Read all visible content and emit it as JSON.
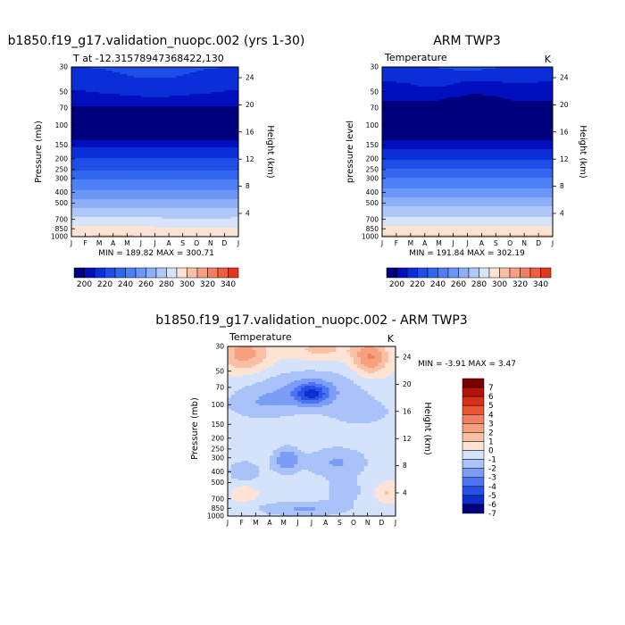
{
  "chart_data": [
    {
      "type": "heatmap",
      "title": "b1850.f19_g17.validation_nuopc.002 (yrs 1-30)",
      "subtitle_left": "T at -12.31578947368422,130",
      "subtitle_right": "",
      "ylabel": "Pressure (mb)",
      "ylabel_right": "Height (km)",
      "xticks": [
        "J",
        "F",
        "M",
        "A",
        "M",
        "J",
        "J",
        "A",
        "S",
        "O",
        "N",
        "D",
        "J"
      ],
      "yticks": [
        "30",
        "50",
        "70",
        "100",
        "150",
        "200",
        "250",
        "300",
        "400",
        "500",
        "700",
        "850",
        "1000"
      ],
      "yticks_right": [
        "24",
        "20",
        "16",
        "12",
        "8",
        "4"
      ],
      "minmax_text": "MIN = 189.82 MAX = 300.71",
      "min": 189.82,
      "max": 300.71,
      "levels": [
        200,
        210,
        220,
        230,
        240,
        250,
        260,
        270,
        280,
        290,
        300,
        310,
        320,
        330,
        340
      ],
      "colorbar_labels": [
        "200",
        "220",
        "240",
        "260",
        "280",
        "300",
        "320",
        "340"
      ],
      "ylim": [
        30,
        1000
      ],
      "profile": [
        {
          "p": 30,
          "t": 222
        },
        {
          "p": 50,
          "t": 212
        },
        {
          "p": 70,
          "t": 198
        },
        {
          "p": 100,
          "t": 193
        },
        {
          "p": 130,
          "t": 198
        },
        {
          "p": 150,
          "t": 208
        },
        {
          "p": 200,
          "t": 220
        },
        {
          "p": 250,
          "t": 229
        },
        {
          "p": 300,
          "t": 238
        },
        {
          "p": 400,
          "t": 253
        },
        {
          "p": 500,
          "t": 265
        },
        {
          "p": 700,
          "t": 282
        },
        {
          "p": 850,
          "t": 292
        },
        {
          "p": 1000,
          "t": 300
        }
      ]
    },
    {
      "type": "heatmap",
      "title": "ARM TWP3",
      "subtitle_left": "Temperature",
      "subtitle_right": "K",
      "ylabel": "pressure level",
      "ylabel_right": "Height (km)",
      "xticks": [
        "J",
        "F",
        "M",
        "A",
        "M",
        "J",
        "J",
        "A",
        "S",
        "O",
        "N",
        "D",
        "J"
      ],
      "yticks": [
        "30",
        "50",
        "70",
        "100",
        "150",
        "200",
        "250",
        "300",
        "400",
        "500",
        "700",
        "850",
        "1000"
      ],
      "yticks_right": [
        "24",
        "20",
        "16",
        "12",
        "8",
        "4"
      ],
      "minmax_text": "MIN = 191.84 MAX = 302.19",
      "min": 191.84,
      "max": 302.19,
      "levels": [
        200,
        210,
        220,
        230,
        240,
        250,
        260,
        270,
        280,
        290,
        300,
        310,
        320,
        330,
        340
      ],
      "colorbar_labels": [
        "200",
        "220",
        "240",
        "260",
        "280",
        "300",
        "320",
        "340"
      ],
      "ylim": [
        30,
        1000
      ],
      "profile": [
        {
          "p": 30,
          "t": 219
        },
        {
          "p": 50,
          "t": 208
        },
        {
          "p": 70,
          "t": 195
        },
        {
          "p": 100,
          "t": 192
        },
        {
          "p": 130,
          "t": 198
        },
        {
          "p": 150,
          "t": 207
        },
        {
          "p": 200,
          "t": 219
        },
        {
          "p": 250,
          "t": 230
        },
        {
          "p": 300,
          "t": 240
        },
        {
          "p": 400,
          "t": 255
        },
        {
          "p": 500,
          "t": 267
        },
        {
          "p": 700,
          "t": 283
        },
        {
          "p": 850,
          "t": 293
        },
        {
          "p": 1000,
          "t": 301
        }
      ]
    },
    {
      "type": "heatmap",
      "title": "b1850.f19_g17.validation_nuopc.002 - ARM TWP3",
      "subtitle_left": "Temperature",
      "subtitle_right": "K",
      "ylabel": "Pressure (mb)",
      "ylabel_right": "Height (km)",
      "xticks": [
        "J",
        "F",
        "M",
        "A",
        "M",
        "J",
        "J",
        "A",
        "S",
        "O",
        "N",
        "D",
        "J"
      ],
      "yticks": [
        "30",
        "50",
        "70",
        "100",
        "150",
        "200",
        "250",
        "300",
        "400",
        "500",
        "700",
        "850",
        "1000"
      ],
      "yticks_right": [
        "24",
        "20",
        "16",
        "12",
        "8",
        "4"
      ],
      "minmax_text": "MIN =  -3.91 MAX =   3.47",
      "min": -3.91,
      "max": 3.47,
      "levels": [
        -7,
        -6,
        -5,
        -4,
        -3,
        -2,
        -1,
        0,
        1,
        2,
        3,
        4,
        5,
        6,
        7
      ],
      "colorbar_labels": [
        "7",
        "6",
        "5",
        "4",
        "3",
        "2",
        "1",
        "0",
        "-1",
        "-2",
        "-3",
        "-4",
        "-5",
        "-6",
        "-7"
      ],
      "ylim": [
        30,
        1000
      ]
    }
  ],
  "colors": {
    "cold": [
      "#00007f",
      "#000fbe",
      "#0a2fd9",
      "#1f4ee6",
      "#3366ee",
      "#4d80f5",
      "#6b96f7",
      "#8daff7",
      "#b0c8f7",
      "#d6e4fa"
    ],
    "warm": [
      "#fde3d3",
      "#f9c0a6",
      "#f6a080",
      "#f28060",
      "#ee5f3e",
      "#dd3a20",
      "#c01c0c",
      "#8a0000"
    ],
    "diff_scale": [
      "#00007f",
      "#0c2fcc",
      "#2650e6",
      "#4c74f2",
      "#7b9df5",
      "#a9c2f7",
      "#d4e3fb",
      "#fde3d3",
      "#f9c0a6",
      "#f6a080",
      "#f28060",
      "#ea5534",
      "#d92e1a",
      "#b3140a",
      "#7a0000"
    ]
  }
}
